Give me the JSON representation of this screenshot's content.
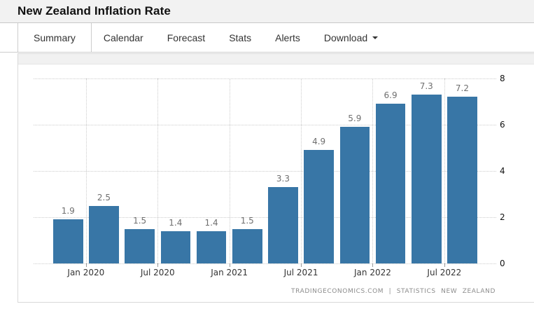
{
  "header": {
    "title": "New Zealand Inflation Rate"
  },
  "tabs": {
    "items": [
      {
        "label": "Summary",
        "active": true
      },
      {
        "label": "Calendar"
      },
      {
        "label": "Forecast"
      },
      {
        "label": "Stats"
      },
      {
        "label": "Alerts"
      },
      {
        "label": "Download",
        "dropdown": true
      }
    ]
  },
  "chart_data": {
    "type": "bar",
    "title": "New Zealand Inflation Rate",
    "values": [
      1.9,
      2.5,
      1.5,
      1.4,
      1.4,
      1.5,
      3.3,
      4.9,
      5.9,
      6.9,
      7.3,
      7.2
    ],
    "bar_value_labels": [
      "1.9",
      "2.5",
      "1.5",
      "1.4",
      "1.4",
      "1.5",
      "3.3",
      "4.9",
      "5.9",
      "6.9",
      "7.3",
      "7.2"
    ],
    "x_tick_labels": [
      "Jan 2020",
      "Jul 2020",
      "Jan 2021",
      "Jul 2021",
      "Jan 2022",
      "Jul 2022"
    ],
    "y_ticks": [
      0,
      2,
      4,
      6,
      8
    ],
    "ylim": [
      0,
      8
    ],
    "y_axis_side": "right",
    "grid": "dotted",
    "legend": "none",
    "source_text": "TRADINGECONOMICS.COM | STATISTICS NEW ZEALAND",
    "colors": {
      "bar": "#3876A6",
      "grid": "#cccccc",
      "bar_label": "#6f6f6f",
      "axis_label": "#111111",
      "source_text": "#8c8c8c"
    }
  }
}
